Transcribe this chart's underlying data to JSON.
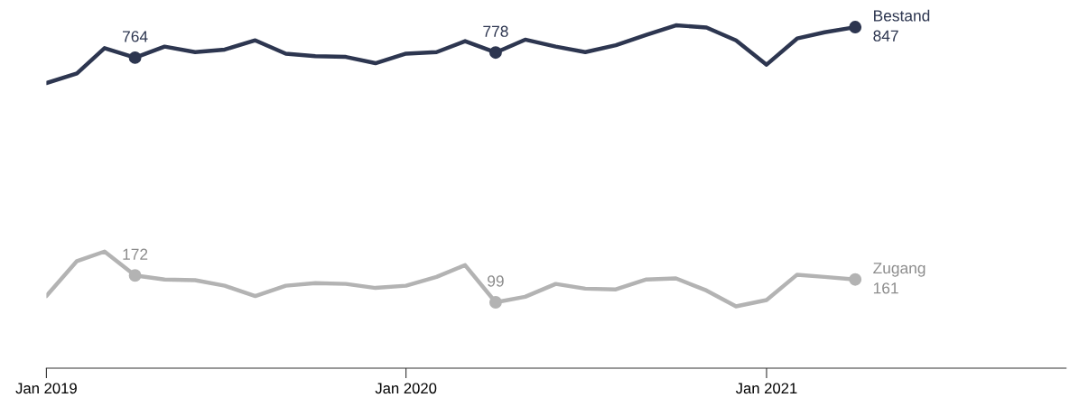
{
  "chart_data": {
    "type": "line",
    "x": [
      "2019-01",
      "2019-02",
      "2019-03",
      "2019-04",
      "2019-05",
      "2019-06",
      "2019-07",
      "2019-08",
      "2019-09",
      "2019-10",
      "2019-11",
      "2019-12",
      "2020-01",
      "2020-02",
      "2020-03",
      "2020-04",
      "2020-05",
      "2020-06",
      "2020-07",
      "2020-08",
      "2020-09",
      "2020-10",
      "2020-11",
      "2020-12",
      "2021-01",
      "2021-02",
      "2021-03",
      "2021-04"
    ],
    "series": [
      {
        "name": "Bestand",
        "color": "#2d3650",
        "values": [
          695,
          721,
          790,
          764,
          794,
          779,
          786,
          811,
          775,
          768,
          766,
          749,
          775,
          779,
          809,
          778,
          813,
          794,
          779,
          798,
          826,
          852,
          846,
          811,
          745,
          816,
          833,
          847
        ],
        "value_labels": [
          null,
          null,
          null,
          "764",
          null,
          null,
          null,
          null,
          null,
          null,
          null,
          null,
          null,
          null,
          null,
          "778",
          null,
          null,
          null,
          null,
          null,
          null,
          null,
          null,
          null,
          null,
          null,
          "847"
        ]
      },
      {
        "name": "Zugang",
        "color": "#b3b3b3",
        "values": [
          116,
          211,
          237,
          172,
          161,
          159,
          144,
          116,
          144,
          151,
          149,
          138,
          144,
          168,
          200,
          99,
          114,
          149,
          136,
          134,
          161,
          164,
          131,
          88,
          105,
          174,
          168,
          161
        ],
        "value_labels": [
          null,
          null,
          null,
          "172",
          null,
          null,
          null,
          null,
          null,
          null,
          null,
          null,
          null,
          null,
          null,
          "99",
          null,
          null,
          null,
          null,
          null,
          null,
          null,
          null,
          null,
          null,
          null,
          "161"
        ]
      }
    ],
    "xlim": [
      "2019-01",
      "2021-11"
    ],
    "xticks": [
      {
        "value": "2019-01",
        "label": "Jan 2019"
      },
      {
        "value": "2020-01",
        "label": "Jan 2020"
      },
      {
        "value": "2021-01",
        "label": "Jan 2021"
      }
    ],
    "tick_labels": "x",
    "grid": false,
    "legend": false
  }
}
